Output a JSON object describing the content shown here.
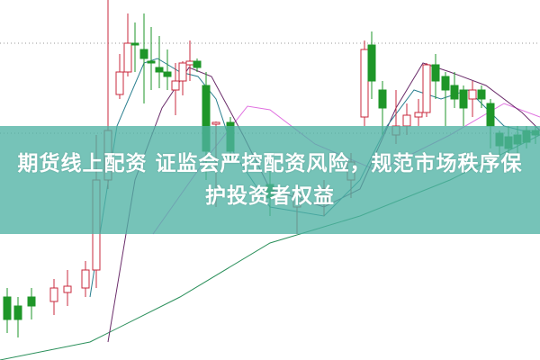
{
  "headline": "期货线上配资 证监会严控配资风险，规范市场秩序保护投资者权益",
  "colors": {
    "banner": "#50b2a4",
    "up_candle": "#c8283c",
    "down_candle": "#1e9628",
    "ma_short": "#2a7f8f",
    "ma_mid": "#6a2c6a",
    "ma_long": "#e070e0",
    "ma_longest": "#2a8f5a"
  }
}
